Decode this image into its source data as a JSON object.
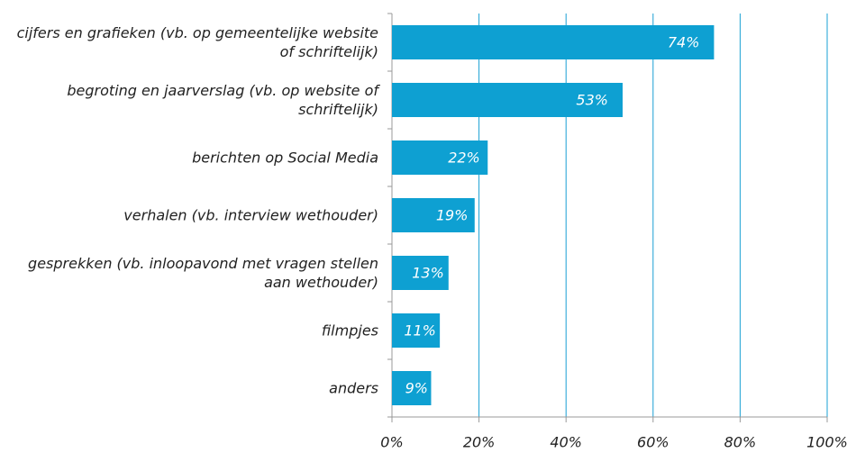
{
  "chart_data": {
    "type": "bar",
    "orientation": "horizontal",
    "categories": [
      "cijfers en grafieken (vb. op gemeentelijke website of schriftelijk)",
      "begroting en jaarverslag (vb. op website of schriftelijk)",
      "berichten op Social Media",
      "verhalen (vb. interview wethouder)",
      "gesprekken (vb. inloopavond met vragen stellen aan wethouder)",
      "filmpjes",
      "anders"
    ],
    "values": [
      74,
      53,
      22,
      19,
      13,
      11,
      9
    ],
    "value_labels": [
      "74%",
      "53%",
      "22%",
      "19%",
      "13%",
      "11%",
      "9%"
    ],
    "color": "#0ea0d2",
    "xlim": [
      0,
      100
    ],
    "xticks": [
      {
        "value": 0,
        "label": "0%"
      },
      {
        "value": 20,
        "label": "20%"
      },
      {
        "value": 40,
        "label": "40%"
      },
      {
        "value": 60,
        "label": "60%"
      },
      {
        "value": 80,
        "label": "80%"
      },
      {
        "value": 100,
        "label": "100%"
      }
    ],
    "grid": true
  }
}
